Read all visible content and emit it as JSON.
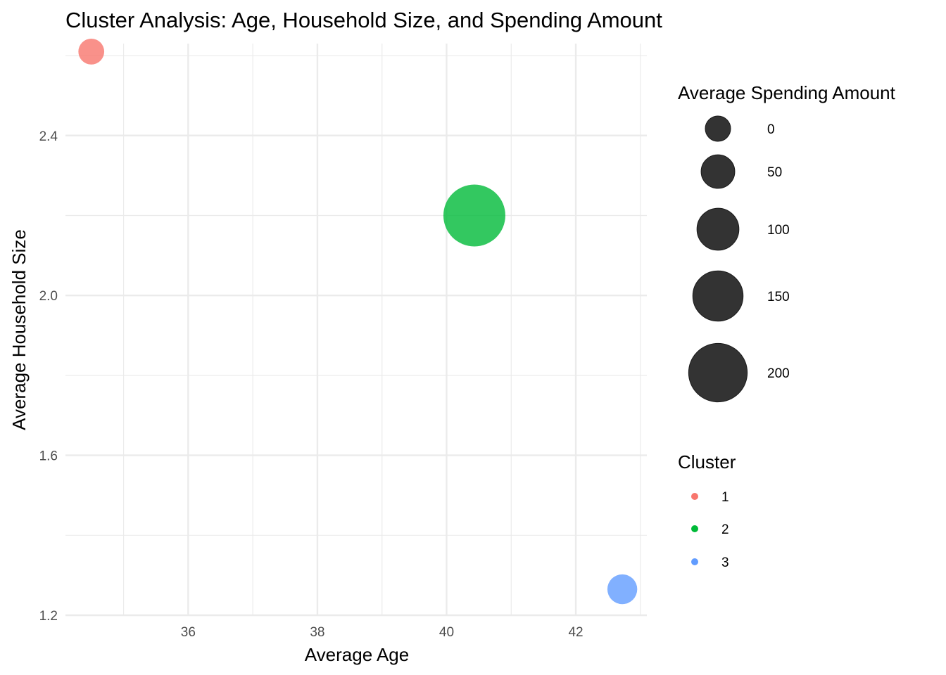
{
  "chart_data": {
    "type": "scatter",
    "title": "Cluster Analysis: Age, Household Size, and Spending Amount",
    "xlabel": "Average Age",
    "ylabel": "Average Household Size",
    "xlim": [
      34.1,
      43.1
    ],
    "ylim": [
      1.2,
      2.63
    ],
    "x_ticks": [
      36,
      38,
      40,
      42
    ],
    "x_tick_labels": [
      "36",
      "38",
      "40",
      "42"
    ],
    "y_ticks": [
      1.2,
      1.6,
      2.0,
      2.4
    ],
    "y_tick_labels": [
      "1.2",
      "1.6",
      "2.0",
      "2.4"
    ],
    "grid": true,
    "points": [
      {
        "cluster": "1",
        "x": 34.5,
        "y": 2.61,
        "size": 3,
        "color": "#F8766D"
      },
      {
        "cluster": "2",
        "x": 40.43,
        "y": 2.2,
        "size": 220,
        "color": "#00BA38"
      },
      {
        "cluster": "3",
        "x": 42.72,
        "y": 1.265,
        "size": 27,
        "color": "#619CFF"
      }
    ],
    "size_legend": {
      "title": "Average Spending Amount",
      "entries": [
        {
          "label": "0",
          "value": 0
        },
        {
          "label": "50",
          "value": 50
        },
        {
          "label": "100",
          "value": 100
        },
        {
          "label": "150",
          "value": 150
        },
        {
          "label": "200",
          "value": 200
        }
      ]
    },
    "color_legend": {
      "title": "Cluster",
      "entries": [
        {
          "label": "1",
          "color": "#F8766D"
        },
        {
          "label": "2",
          "color": "#00BA38"
        },
        {
          "label": "3",
          "color": "#619CFF"
        }
      ]
    },
    "legend_position": "right"
  }
}
